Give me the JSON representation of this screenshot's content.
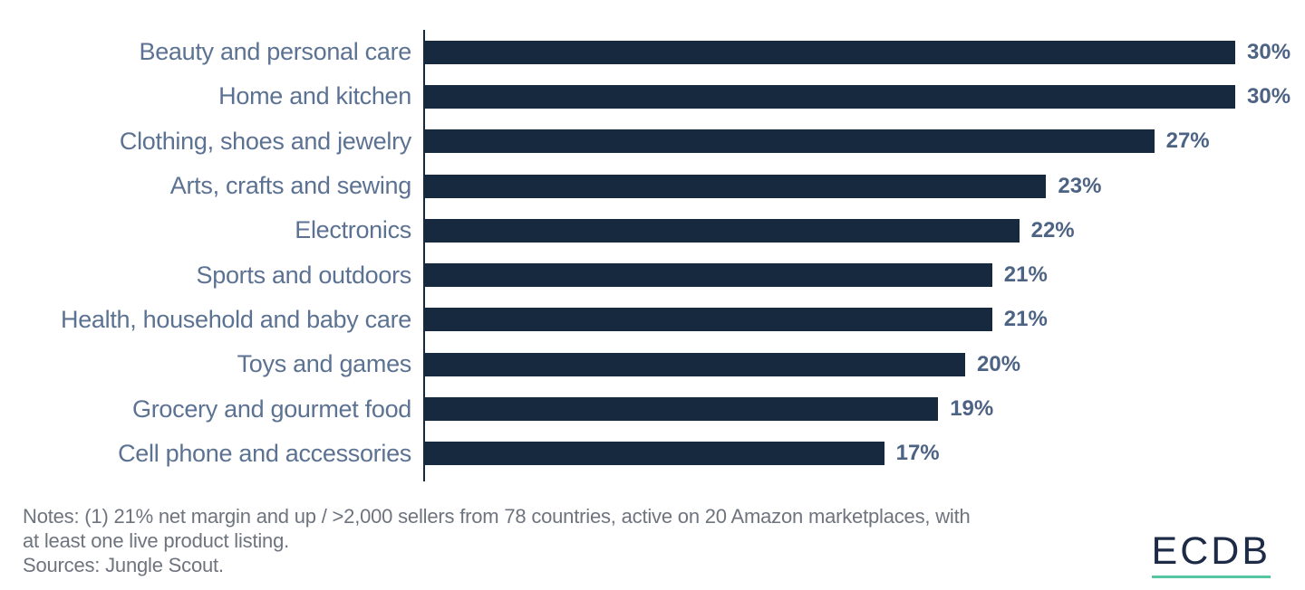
{
  "chart_data": {
    "type": "bar",
    "orientation": "horizontal",
    "categories": [
      "Beauty and personal care",
      "Home and kitchen",
      "Clothing, shoes and jewelry",
      "Arts, crafts and sewing",
      "Electronics",
      "Sports and outdoors",
      "Health, household and baby care",
      "Toys and games",
      "Grocery and gourmet food",
      "Cell phone and accessories"
    ],
    "values": [
      30,
      30,
      27,
      23,
      22,
      21,
      21,
      20,
      19,
      17
    ],
    "value_labels": [
      "30%",
      "30%",
      "27%",
      "23%",
      "22%",
      "21%",
      "21%",
      "20%",
      "19%",
      "17%"
    ],
    "title": "",
    "xlabel": "",
    "ylabel": "",
    "xlim": [
      0,
      30
    ],
    "grid": false,
    "legend": false,
    "bar_color": "#16293e",
    "category_label_color": "#5c7292",
    "value_label_color": "#4d6384",
    "axis_color": "#16293e"
  },
  "footer": {
    "notes_lines": [
      "Notes: (1) 21% net margin and up / >2,000 sellers from 78 countries, active on 20 Amazon marketplaces, with",
      "at least one live product listing."
    ],
    "sources": "Sources: Jungle Scout."
  },
  "branding": {
    "logo_text": "ECDB",
    "logo_color": "#1d2b47",
    "underline_color": "#57c7a3"
  }
}
